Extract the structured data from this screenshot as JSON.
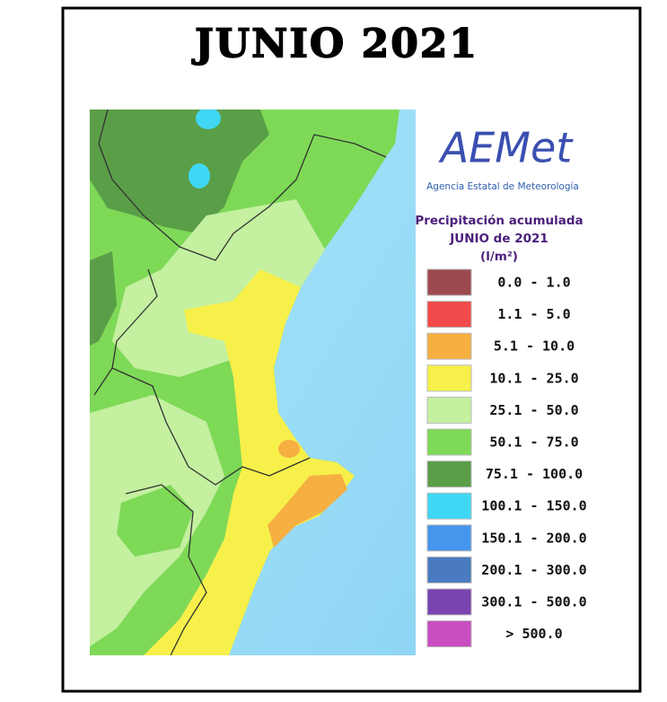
{
  "title": "JUNIO 2021",
  "logo": {
    "name": "AEMet",
    "subtitle": "Agencia Estatal de Meteorología"
  },
  "legend": {
    "title_lines": [
      "Precipitación acumulada",
      "JUNIO de 2021",
      "(l/m²)"
    ],
    "items": [
      {
        "label": "0.0 - 1.0",
        "color": "#9c4a50"
      },
      {
        "label": "1.1 - 5.0",
        "color": "#f24a4a"
      },
      {
        "label": "5.1 - 10.0",
        "color": "#f5b041"
      },
      {
        "label": "10.1 - 25.0",
        "color": "#f7f04a"
      },
      {
        "label": "25.1 - 50.0",
        "color": "#c4f0a0"
      },
      {
        "label": "50.1 - 75.0",
        "color": "#7ed957"
      },
      {
        "label": "75.1 - 100.0",
        "color": "#5a9e48"
      },
      {
        "label": "100.1 - 150.0",
        "color": "#40d7f5"
      },
      {
        "label": "150.1 - 200.0",
        "color": "#4796ee"
      },
      {
        "label": "200.1 - 300.0",
        "color": "#4a7bc0"
      },
      {
        "label": "300.1 - 500.0",
        "color": "#7a44b0"
      },
      {
        "label": "> 500.0",
        "color": "#c94ec2"
      }
    ]
  }
}
